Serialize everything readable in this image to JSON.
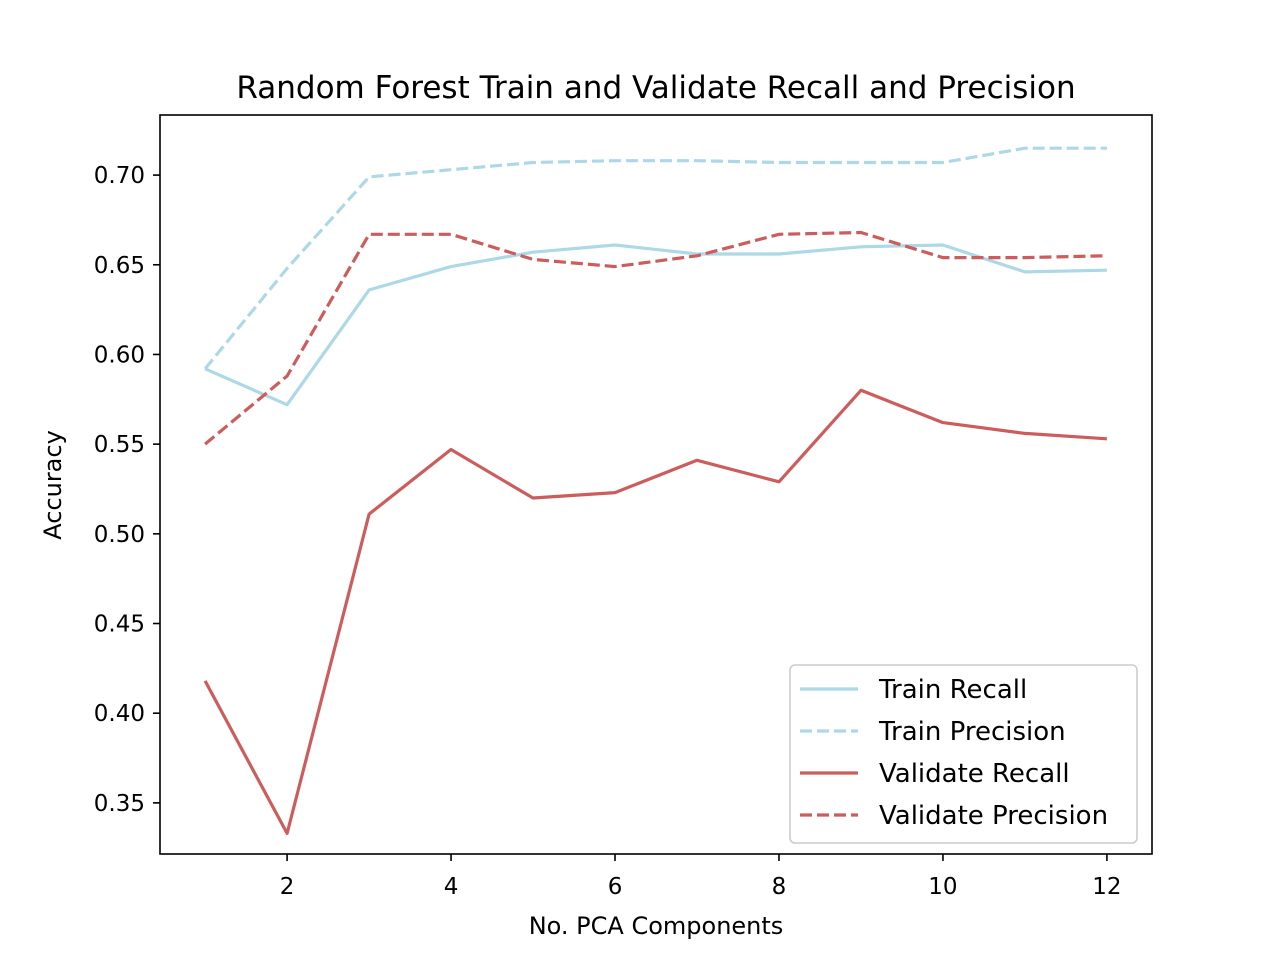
{
  "chart_data": {
    "type": "line",
    "title": "Random Forest Train and Validate Recall and Precision",
    "xlabel": "No. PCA Components",
    "ylabel": "Accuracy",
    "x": [
      1,
      2,
      3,
      4,
      5,
      6,
      7,
      8,
      9,
      10,
      11,
      12
    ],
    "xlim": [
      0.45,
      12.55
    ],
    "ylim": [
      0.3215,
      0.7335
    ],
    "xticks": [
      2,
      4,
      6,
      8,
      10,
      12
    ],
    "yticks": [
      0.35,
      0.4,
      0.45,
      0.5,
      0.55,
      0.6,
      0.65,
      0.7
    ],
    "xtick_labels": [
      "2",
      "4",
      "6",
      "8",
      "10",
      "12"
    ],
    "ytick_labels": [
      "0.35",
      "0.40",
      "0.45",
      "0.50",
      "0.55",
      "0.60",
      "0.65",
      "0.70"
    ],
    "grid": false,
    "legend_position": "bottom-right",
    "series": [
      {
        "name": "Train Recall",
        "color": "#add8e6",
        "style": "solid",
        "values": [
          0.592,
          0.572,
          0.636,
          0.649,
          0.657,
          0.661,
          0.656,
          0.656,
          0.66,
          0.661,
          0.646,
          0.647
        ]
      },
      {
        "name": "Train Precision",
        "color": "#add8e6",
        "style": "dashed",
        "values": [
          0.592,
          0.648,
          0.699,
          0.703,
          0.707,
          0.708,
          0.708,
          0.707,
          0.707,
          0.707,
          0.715,
          0.715
        ]
      },
      {
        "name": "Validate Recall",
        "color": "#cd5c5c",
        "style": "solid",
        "values": [
          0.418,
          0.333,
          0.511,
          0.547,
          0.52,
          0.523,
          0.541,
          0.529,
          0.58,
          0.562,
          0.556,
          0.553
        ]
      },
      {
        "name": "Validate Precision",
        "color": "#cd5c5c",
        "style": "dashed",
        "values": [
          0.55,
          0.588,
          0.667,
          0.667,
          0.653,
          0.649,
          0.655,
          0.667,
          0.668,
          0.654,
          0.654,
          0.655
        ]
      }
    ]
  }
}
